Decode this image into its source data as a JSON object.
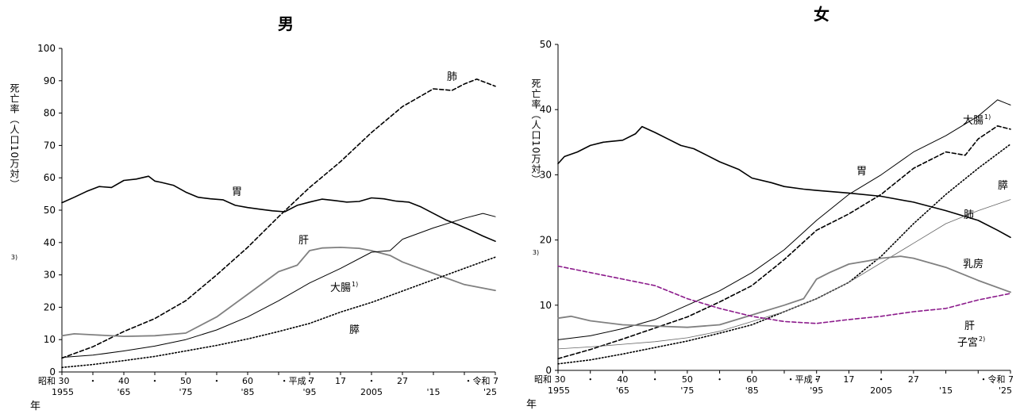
{
  "chart_data": [
    {
      "type": "line",
      "title": "男",
      "ylabel": "死亡率（人口10万対）",
      "ylabel_sup": "3)",
      "xlabel": "年",
      "ylim": [
        0,
        100
      ],
      "yticks": [
        0,
        10,
        20,
        30,
        40,
        50,
        60,
        70,
        80,
        90,
        100
      ],
      "xlim": [
        1955,
        2025
      ],
      "xticks_top": [
        "昭和 30",
        "・",
        "40",
        "・",
        "50",
        "・",
        "60",
        "・平成 7",
        "・",
        "17",
        "・",
        "27",
        "・令和 7"
      ],
      "xticks_bottom": [
        "1955",
        "'65",
        "'75",
        "'85",
        "'95",
        "2005",
        "'15",
        "'25"
      ],
      "grid": false,
      "series": [
        {
          "name": "胃",
          "style": "solid-thick",
          "color": "#000000",
          "x": [
            1955,
            1957,
            1959,
            1961,
            1963,
            1965,
            1967,
            1969,
            1970,
            1971,
            1973,
            1975,
            1977,
            1979,
            1981,
            1983,
            1985,
            1987,
            1989,
            1991,
            1993,
            1995,
            1997,
            1999,
            2001,
            2003,
            2005,
            2007,
            2009,
            2011,
            2013,
            2015,
            2017,
            2019,
            2021,
            2023,
            2025
          ],
          "values": [
            52.3,
            54.0,
            55.8,
            57.3,
            57.0,
            59.2,
            59.6,
            60.5,
            59.0,
            58.6,
            57.7,
            55.6,
            54.0,
            53.5,
            53.2,
            51.5,
            50.8,
            50.3,
            49.8,
            49.5,
            51.5,
            52.5,
            53.4,
            53.0,
            52.5,
            52.7,
            53.8,
            53.5,
            52.8,
            52.5,
            51.0,
            49.0,
            47.0,
            45.5,
            43.8,
            42.0,
            40.4
          ]
        },
        {
          "name": "肺",
          "style": "dashed",
          "color": "#000000",
          "x": [
            1955,
            1960,
            1965,
            1970,
            1975,
            1980,
            1985,
            1990,
            1995,
            2000,
            2005,
            2010,
            2015,
            2018,
            2020,
            2022,
            2025
          ],
          "values": [
            4.3,
            7.8,
            12.5,
            16.5,
            22.0,
            30.0,
            38.5,
            48.0,
            57.0,
            65.0,
            74.0,
            82.0,
            87.5,
            87.0,
            89.0,
            90.5,
            88.3
          ]
        },
        {
          "name": "肝",
          "style": "solid-gray",
          "color": "#808080",
          "x": [
            1955,
            1957,
            1960,
            1965,
            1970,
            1975,
            1980,
            1985,
            1990,
            1993,
            1995,
            1997,
            2000,
            2003,
            2005,
            2008,
            2010,
            2015,
            2020,
            2025
          ],
          "values": [
            11.2,
            11.8,
            11.5,
            11.0,
            11.2,
            12.0,
            17.0,
            24.0,
            31.0,
            33.0,
            37.5,
            38.3,
            38.5,
            38.2,
            37.5,
            36.0,
            34.0,
            30.5,
            27.0,
            25.2
          ]
        },
        {
          "name": "大腸",
          "name_sup": "1)",
          "style": "solid-thin",
          "color": "#000000",
          "x": [
            1955,
            1960,
            1965,
            1970,
            1975,
            1980,
            1985,
            1990,
            1995,
            2000,
            2005,
            2008,
            2010,
            2015,
            2020,
            2023,
            2025
          ],
          "values": [
            4.5,
            5.2,
            6.5,
            8.0,
            10.0,
            13.0,
            17.0,
            22.0,
            27.5,
            32.0,
            37.0,
            37.5,
            41.0,
            44.5,
            47.5,
            49.0,
            48.0
          ]
        },
        {
          "name": "膵",
          "style": "dotted",
          "color": "#000000",
          "x": [
            1955,
            1960,
            1965,
            1970,
            1975,
            1980,
            1985,
            1990,
            1995,
            2000,
            2005,
            2010,
            2015,
            2020,
            2025
          ],
          "values": [
            1.4,
            2.3,
            3.5,
            4.8,
            6.5,
            8.2,
            10.2,
            12.5,
            15.0,
            18.5,
            21.5,
            25.0,
            28.5,
            32.0,
            35.5
          ]
        }
      ],
      "annotations": [
        {
          "text": "肺",
          "series": "肺"
        },
        {
          "text": "胃",
          "series": "胃"
        },
        {
          "text": "肝",
          "series": "肝"
        },
        {
          "text": "大腸",
          "sup": "1)",
          "series": "大腸"
        },
        {
          "text": "膵",
          "series": "膵"
        }
      ]
    },
    {
      "type": "line",
      "title": "女",
      "ylabel": "死亡率（人口10万対）",
      "ylabel_sup": "3)",
      "xlabel": "年",
      "ylim": [
        0,
        50
      ],
      "yticks": [
        0,
        10,
        20,
        30,
        40,
        50
      ],
      "xlim": [
        1955,
        2025
      ],
      "xticks_top": [
        "昭和 30",
        "・",
        "40",
        "・",
        "50",
        "・",
        "60",
        "・平成 7",
        "・",
        "17",
        "・",
        "27",
        "・令和 7"
      ],
      "xticks_bottom": [
        "1955",
        "'65",
        "'75",
        "'85",
        "'95",
        "2005",
        "'15",
        "'25"
      ],
      "grid": false,
      "series": [
        {
          "name": "胃",
          "style": "solid-thick",
          "color": "#000000",
          "x": [
            1955,
            1956,
            1958,
            1960,
            1962,
            1965,
            1967,
            1968,
            1970,
            1972,
            1974,
            1976,
            1978,
            1980,
            1983,
            1985,
            1988,
            1990,
            1993,
            1995,
            2000,
            2005,
            2010,
            2015,
            2020,
            2023,
            2025
          ],
          "values": [
            31.7,
            32.8,
            33.5,
            34.5,
            35.0,
            35.3,
            36.3,
            37.4,
            36.5,
            35.5,
            34.5,
            34.0,
            33.0,
            32.0,
            30.8,
            29.5,
            28.8,
            28.2,
            27.8,
            27.6,
            27.2,
            26.7,
            25.8,
            24.5,
            23.0,
            21.5,
            20.4
          ]
        },
        {
          "name": "大腸",
          "name_sup": "1)",
          "style": "solid-thin",
          "color": "#000000",
          "x": [
            1955,
            1960,
            1965,
            1970,
            1975,
            1980,
            1985,
            1990,
            1995,
            2000,
            2005,
            2010,
            2015,
            2020,
            2023,
            2025
          ],
          "values": [
            4.7,
            5.3,
            6.4,
            7.8,
            10.0,
            12.2,
            15.0,
            18.5,
            23.0,
            27.0,
            30.0,
            33.5,
            36.0,
            39.0,
            41.5,
            40.7
          ]
        },
        {
          "name": "肺",
          "style": "dashed",
          "color": "#000000",
          "x": [
            1955,
            1960,
            1965,
            1970,
            1975,
            1980,
            1985,
            1990,
            1995,
            2000,
            2005,
            2010,
            2015,
            2018,
            2020,
            2023,
            2025
          ],
          "values": [
            1.8,
            3.2,
            4.8,
            6.5,
            8.2,
            10.5,
            13.0,
            17.0,
            21.5,
            24.0,
            27.0,
            31.0,
            33.5,
            33.0,
            35.5,
            37.5,
            37.0
          ]
        },
        {
          "name": "膵",
          "style": "dotted",
          "color": "#000000",
          "x": [
            1955,
            1960,
            1965,
            1970,
            1975,
            1980,
            1985,
            1990,
            1995,
            2000,
            2005,
            2010,
            2015,
            2020,
            2025
          ],
          "values": [
            1.0,
            1.6,
            2.5,
            3.5,
            4.5,
            5.7,
            7.0,
            9.0,
            11.0,
            13.5,
            17.5,
            22.5,
            27.0,
            31.0,
            34.7
          ]
        },
        {
          "name": "乳房",
          "style": "solid-hair",
          "color": "#666666",
          "x": [
            1955,
            1960,
            1965,
            1970,
            1975,
            1980,
            1985,
            1990,
            1995,
            2000,
            2005,
            2010,
            2015,
            2020,
            2025
          ],
          "values": [
            3.3,
            3.6,
            4.0,
            4.4,
            5.0,
            6.0,
            7.5,
            9.0,
            11.0,
            13.5,
            16.5,
            19.5,
            22.5,
            24.5,
            26.2
          ]
        },
        {
          "name": "肝",
          "style": "solid-gray",
          "color": "#808080",
          "x": [
            1955,
            1957,
            1960,
            1965,
            1970,
            1975,
            1980,
            1985,
            1990,
            1993,
            1995,
            1997,
            2000,
            2003,
            2005,
            2008,
            2010,
            2015,
            2020,
            2025
          ],
          "values": [
            8.0,
            8.3,
            7.6,
            7.0,
            6.8,
            6.6,
            7.0,
            8.5,
            10.0,
            11.0,
            14.0,
            15.0,
            16.3,
            16.8,
            17.2,
            17.5,
            17.2,
            15.8,
            13.8,
            12.0
          ]
        },
        {
          "name": "子宮",
          "name_sup": "2)",
          "style": "dashed-purple",
          "color": "#8B1A8B",
          "x": [
            1955,
            1960,
            1965,
            1970,
            1975,
            1980,
            1985,
            1990,
            1995,
            2000,
            2005,
            2010,
            2015,
            2020,
            2025
          ],
          "values": [
            16.0,
            15.0,
            14.0,
            13.0,
            11.0,
            9.5,
            8.3,
            7.5,
            7.2,
            7.8,
            8.3,
            9.0,
            9.5,
            10.8,
            11.8
          ]
        }
      ],
      "annotations": [
        {
          "text": "大腸",
          "sup": "1)",
          "series": "大腸"
        },
        {
          "text": "胃",
          "series": "胃"
        },
        {
          "text": "肺",
          "series": "肺"
        },
        {
          "text": "膵",
          "series": "膵"
        },
        {
          "text": "乳房",
          "series": "乳房"
        },
        {
          "text": "肝",
          "series": "肝"
        },
        {
          "text": "子宮",
          "sup": "2)",
          "series": "子宮"
        }
      ]
    }
  ]
}
